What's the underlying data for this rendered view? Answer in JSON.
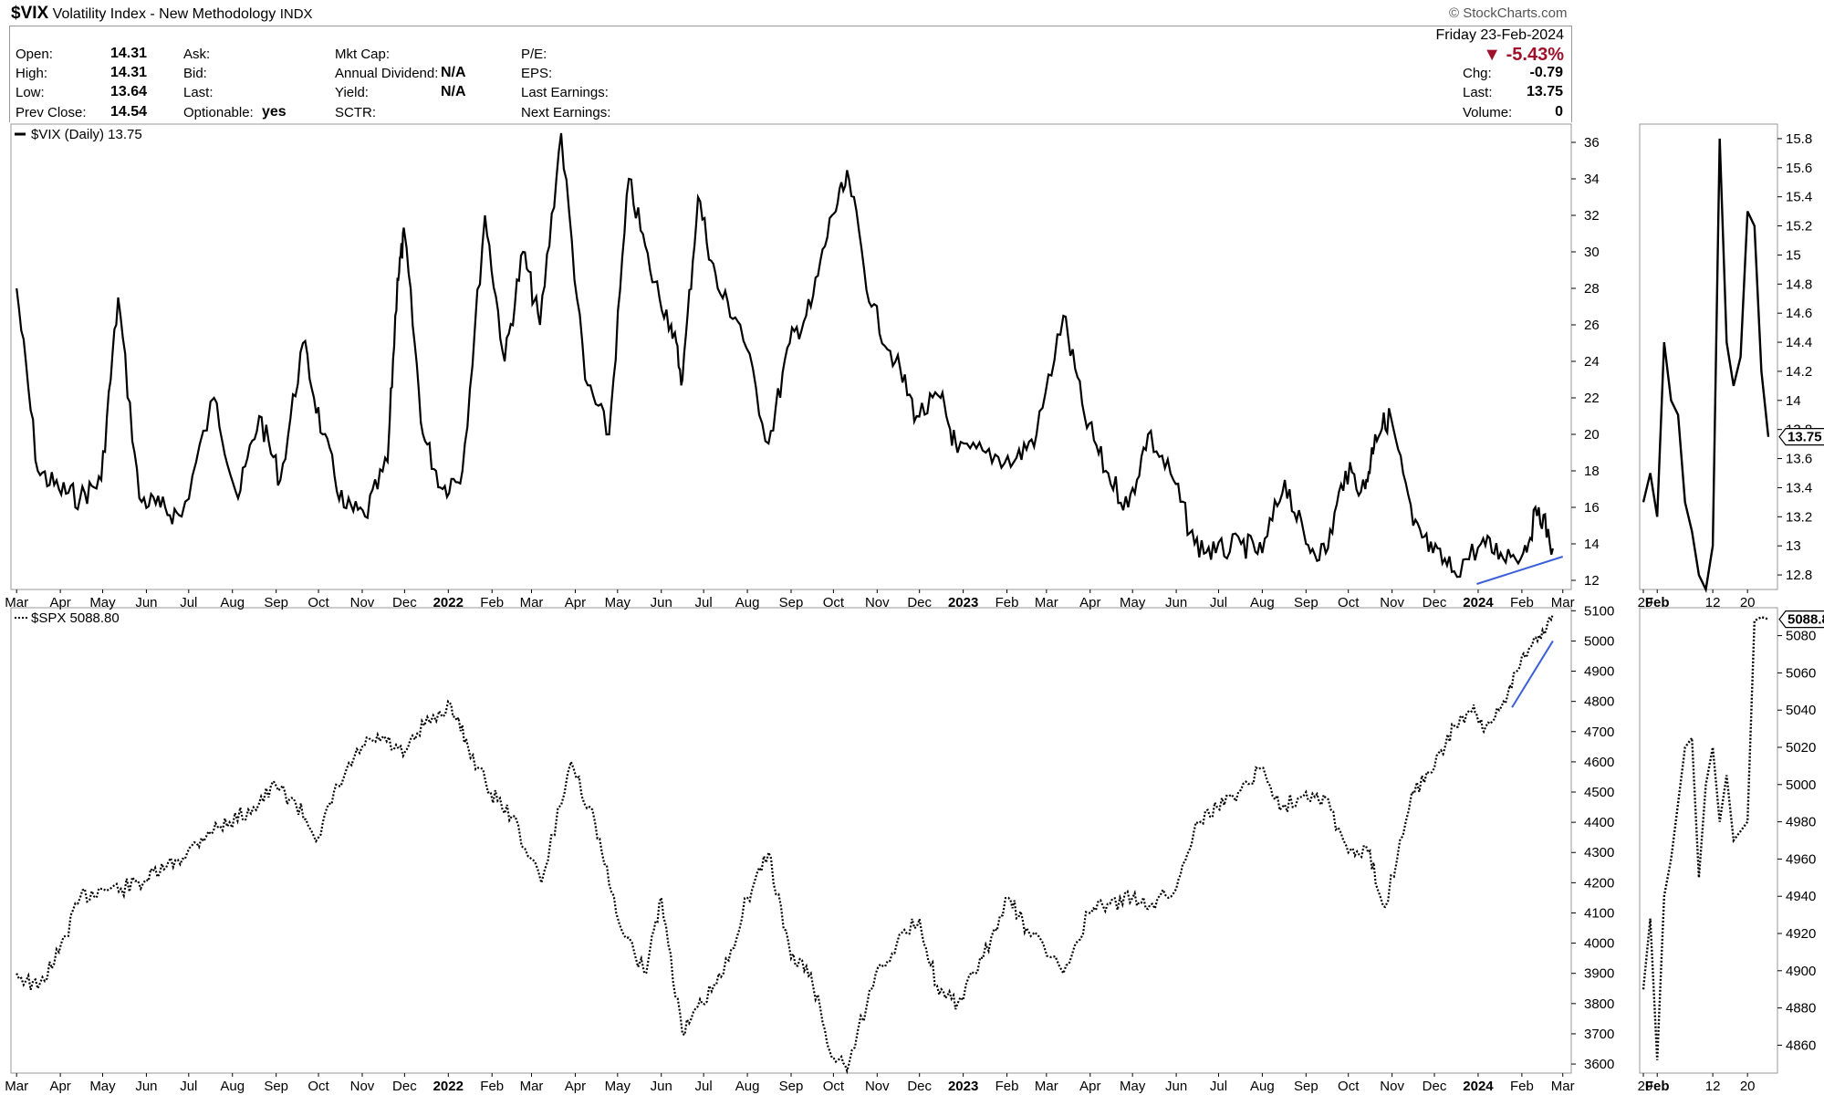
{
  "header": {
    "symbol": "$VIX",
    "name": "Volatility Index - New Methodology",
    "exchange": "INDX",
    "brand": "StockCharts.com",
    "brand_icon": "copyright-icon"
  },
  "quote": {
    "open_label": "Open:",
    "open": "14.31",
    "high_label": "High:",
    "high": "14.31",
    "low_label": "Low:",
    "low": "13.64",
    "prev_label": "Prev Close:",
    "prev": "14.54",
    "ask_label": "Ask:",
    "bid_label": "Bid:",
    "last_label": "Last:",
    "optionable_label": "Optionable:",
    "optionable": "yes",
    "mktcap_label": "Mkt Cap:",
    "div_label": "Annual Dividend:",
    "div": "N/A",
    "yield_label": "Yield:",
    "yield": "N/A",
    "sctr_label": "SCTR:",
    "pe_label": "P/E:",
    "eps_label": "EPS:",
    "last_earn_label": "Last Earnings:",
    "next_earn_label": "Next Earnings:",
    "date": "Friday  23-Feb-2024",
    "pct_change": "-5.43%",
    "chg_label": "Chg:",
    "chg": "-0.79",
    "rlast_label": "Last:",
    "rlast": "13.75",
    "volume_label": "Volume:",
    "volume": "0",
    "down_color": "#a0102a"
  },
  "chart_data": [
    {
      "type": "line",
      "panel": "top-main",
      "legend": "$VIX (Daily) 13.75",
      "series": [
        {
          "name": "$VIX (Daily)",
          "last": 13.75,
          "style": "solid"
        }
      ],
      "x": [
        "2021-03-01",
        "2021-03-16",
        "2021-03-31",
        "2021-04-15",
        "2021-04-30",
        "2021-05-12",
        "2021-05-27",
        "2021-06-11",
        "2021-06-26",
        "2021-07-19",
        "2021-08-05",
        "2021-08-20",
        "2021-09-04",
        "2021-09-20",
        "2021-10-04",
        "2021-10-19",
        "2021-11-03",
        "2021-11-19",
        "2021-11-26",
        "2021-12-01",
        "2021-12-14",
        "2021-12-28",
        "2022-01-11",
        "2022-01-27",
        "2022-02-10",
        "2022-02-23",
        "2022-03-07",
        "2022-03-22",
        "2022-04-08",
        "2022-04-25",
        "2022-05-09",
        "2022-05-24",
        "2022-06-08",
        "2022-06-16",
        "2022-06-27",
        "2022-07-11",
        "2022-07-27",
        "2022-08-16",
        "2022-08-31",
        "2022-09-15",
        "2022-09-30",
        "2022-10-12",
        "2022-10-28",
        "2022-11-14",
        "2022-11-29",
        "2022-12-16",
        "2022-12-28",
        "2023-01-17",
        "2023-02-06",
        "2023-02-22",
        "2023-03-13",
        "2023-03-28",
        "2023-04-12",
        "2023-04-28",
        "2023-05-12",
        "2023-05-30",
        "2023-06-14",
        "2023-06-29",
        "2023-07-17",
        "2023-08-01",
        "2023-08-17",
        "2023-09-01",
        "2023-09-15",
        "2023-09-29",
        "2023-10-13",
        "2023-10-20",
        "2023-10-31",
        "2023-11-16",
        "2023-11-30",
        "2023-12-15",
        "2024-01-03",
        "2024-01-17",
        "2024-02-02",
        "2024-02-13",
        "2024-02-23"
      ],
      "y": [
        28,
        18,
        17,
        16.5,
        17.5,
        27.5,
        16.5,
        16,
        15.5,
        22,
        16.5,
        21,
        17.5,
        25,
        20,
        16,
        15.5,
        18.5,
        28.5,
        31,
        20,
        17,
        18,
        32,
        24,
        30,
        26,
        36.5,
        23,
        20,
        34,
        29,
        26,
        23,
        33,
        28,
        26,
        19.5,
        25,
        27,
        32,
        34,
        27,
        24,
        21,
        22,
        19,
        19,
        18.5,
        20,
        26.5,
        21,
        18,
        16,
        20,
        17.5,
        14,
        13.5,
        14,
        13.5,
        17.5,
        14,
        13.5,
        18,
        17,
        20,
        21,
        15,
        13.5,
        12.5,
        14,
        13.5,
        13.5,
        16,
        13.75
      ],
      "x_ticks": [
        "Mar",
        "Apr",
        "May",
        "Jun",
        "Jul",
        "Aug",
        "Sep",
        "Oct",
        "Nov",
        "Dec",
        "2022",
        "Feb",
        "Mar",
        "Apr",
        "May",
        "Jun",
        "Jul",
        "Aug",
        "Sep",
        "Oct",
        "Nov",
        "Dec",
        "2023",
        "Feb",
        "Mar",
        "Apr",
        "May",
        "Jun",
        "Jul",
        "Aug",
        "Sep",
        "Oct",
        "Nov",
        "Dec",
        "2024",
        "Feb",
        "Mar"
      ],
      "y_ticks": [
        12,
        14,
        16,
        18,
        20,
        22,
        24,
        26,
        28,
        30,
        32,
        34,
        36
      ],
      "ylim": [
        11.5,
        37
      ],
      "trendline": {
        "from": [
          "2023-12-31",
          11.8
        ],
        "to": [
          "2024-03-01",
          13.3
        ],
        "color": "#3a5fd8"
      },
      "line_color": "#000000"
    },
    {
      "type": "line",
      "panel": "bottom-main",
      "legend": "$SPX 5088.80",
      "series": [
        {
          "name": "$SPX",
          "last": 5088.8,
          "style": "dotted"
        }
      ],
      "x": [
        "2021-03-01",
        "2021-03-16",
        "2021-03-31",
        "2021-04-15",
        "2021-04-30",
        "2021-05-14",
        "2021-06-01",
        "2021-06-15",
        "2021-06-30",
        "2021-07-15",
        "2021-07-30",
        "2021-08-16",
        "2021-09-01",
        "2021-09-15",
        "2021-10-01",
        "2021-10-15",
        "2021-11-01",
        "2021-11-15",
        "2021-11-30",
        "2021-12-15",
        "2022-01-03",
        "2022-01-15",
        "2022-01-31",
        "2022-02-15",
        "2022-03-08",
        "2022-03-29",
        "2022-04-15",
        "2022-04-30",
        "2022-05-20",
        "2022-06-01",
        "2022-06-16",
        "2022-06-30",
        "2022-07-15",
        "2022-08-01",
        "2022-08-16",
        "2022-09-01",
        "2022-09-15",
        "2022-09-30",
        "2022-10-12",
        "2022-10-31",
        "2022-11-15",
        "2022-12-01",
        "2022-12-15",
        "2022-12-28",
        "2023-01-15",
        "2023-02-02",
        "2023-02-15",
        "2023-03-13",
        "2023-03-31",
        "2023-04-15",
        "2023-05-01",
        "2023-05-15",
        "2023-06-01",
        "2023-06-15",
        "2023-06-30",
        "2023-07-15",
        "2023-07-31",
        "2023-08-15",
        "2023-09-01",
        "2023-09-15",
        "2023-10-01",
        "2023-10-15",
        "2023-10-27",
        "2023-11-15",
        "2023-12-01",
        "2023-12-15",
        "2023-12-28",
        "2024-01-05",
        "2024-01-19",
        "2024-02-01",
        "2024-02-12",
        "2024-02-23"
      ],
      "y": [
        3900,
        3850,
        3970,
        4150,
        4180,
        4180,
        4210,
        4250,
        4300,
        4370,
        4400,
        4450,
        4520,
        4460,
        4350,
        4520,
        4650,
        4680,
        4620,
        4720,
        4790,
        4650,
        4500,
        4420,
        4200,
        4600,
        4400,
        4100,
        3900,
        4150,
        3700,
        3800,
        3900,
        4150,
        4300,
        3950,
        3900,
        3620,
        3600,
        3900,
        4000,
        4080,
        3830,
        3800,
        3950,
        4150,
        4050,
        3900,
        4100,
        4130,
        4150,
        4130,
        4180,
        4400,
        4450,
        4500,
        4580,
        4450,
        4500,
        4480,
        4300,
        4300,
        4120,
        4500,
        4580,
        4720,
        4770,
        4700,
        4800,
        4950,
        5000,
        5088.8
      ],
      "x_ticks": [
        "Mar",
        "Apr",
        "May",
        "Jun",
        "Jul",
        "Aug",
        "Sep",
        "Oct",
        "Nov",
        "Dec",
        "2022",
        "Feb",
        "Mar",
        "Apr",
        "May",
        "Jun",
        "Jul",
        "Aug",
        "Sep",
        "Oct",
        "Nov",
        "Dec",
        "2023",
        "Feb",
        "Mar",
        "Apr",
        "May",
        "Jun",
        "Jul",
        "Aug",
        "Sep",
        "Oct",
        "Nov",
        "Dec",
        "2024",
        "Feb",
        "Mar"
      ],
      "y_ticks": [
        3600,
        3700,
        3800,
        3900,
        4000,
        4100,
        4200,
        4300,
        4400,
        4500,
        4600,
        4700,
        4800,
        4900,
        5000,
        5100
      ],
      "ylim": [
        3570,
        5110
      ],
      "trendline": {
        "from": [
          "2024-01-25",
          4780
        ],
        "to": [
          "2024-02-23",
          5000
        ],
        "color": "#3a5fd8"
      },
      "line_color": "#000000"
    },
    {
      "type": "line",
      "panel": "top-zoom",
      "series": [
        {
          "name": "$VIX",
          "last": 13.75,
          "style": "solid"
        }
      ],
      "x": [
        0,
        1,
        2,
        3,
        4,
        5,
        6,
        7,
        8,
        9,
        10,
        11,
        12,
        13,
        14,
        15,
        16,
        17,
        18
      ],
      "y": [
        13.3,
        13.5,
        13.2,
        14.4,
        14,
        13.9,
        13.3,
        13.1,
        12.8,
        12.7,
        13,
        15.8,
        14.4,
        14.1,
        14.3,
        15.3,
        15.2,
        14.2,
        13.75
      ],
      "x_ticks": [
        "29",
        "Feb",
        "12",
        "20"
      ],
      "y_ticks": [
        12.8,
        13,
        13.2,
        13.4,
        13.6,
        13.8,
        14,
        14.2,
        14.4,
        14.6,
        14.8,
        15,
        15.2,
        15.4,
        15.6,
        15.8
      ],
      "ylim": [
        12.7,
        15.9
      ],
      "last_label": "13.75"
    },
    {
      "type": "line",
      "panel": "bottom-zoom",
      "series": [
        {
          "name": "$SPX",
          "last": 5088.8,
          "style": "dotted"
        }
      ],
      "x": [
        0,
        1,
        2,
        3,
        4,
        5,
        6,
        7,
        8,
        9,
        10,
        11,
        12,
        13,
        14,
        15,
        16,
        17,
        18
      ],
      "y": [
        4890,
        4928,
        4852,
        4940,
        4960,
        4990,
        5020,
        5025,
        4950,
        5000,
        5020,
        4980,
        5005,
        4970,
        4975,
        4980,
        5088,
        5090,
        5088.8
      ],
      "x_ticks": [
        "29",
        "Feb",
        "12",
        "20"
      ],
      "y_ticks": [
        4860,
        4880,
        4900,
        4920,
        4940,
        4960,
        4980,
        5000,
        5020,
        5040,
        5060,
        5080
      ],
      "ylim": [
        4845,
        5095
      ],
      "last_label": "5088.8"
    }
  ]
}
